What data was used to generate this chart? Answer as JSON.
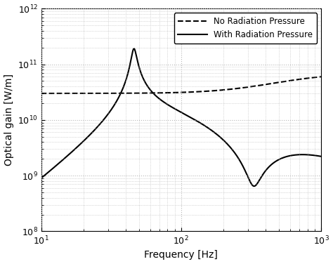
{
  "xlim": [
    10,
    1000
  ],
  "ylim": [
    100000000.0,
    1000000000000.0
  ],
  "xlabel": "Frequency [Hz]",
  "ylabel": "Optical gain [W/m]",
  "legend_labels": [
    "No Radiation Pressure",
    "With Radiation Pressure"
  ],
  "background_color": "#ffffff",
  "line_color": "#000000",
  "grid_color": "#b8b8b8",
  "dashed_base": 30000000000.0,
  "dashed_f_zero": 300.0,
  "dashed_f_pole": 700.0,
  "solid_f_spring": 46.0,
  "solid_Q_spring": 12.0,
  "solid_f_pole1": 95.0,
  "solid_f_res2": 330.0,
  "solid_Q_res2": 5.0,
  "solid_f_pole2": 430.0,
  "solid_f_pole3": 650.0,
  "solid_val_at_10": 900000000.0
}
